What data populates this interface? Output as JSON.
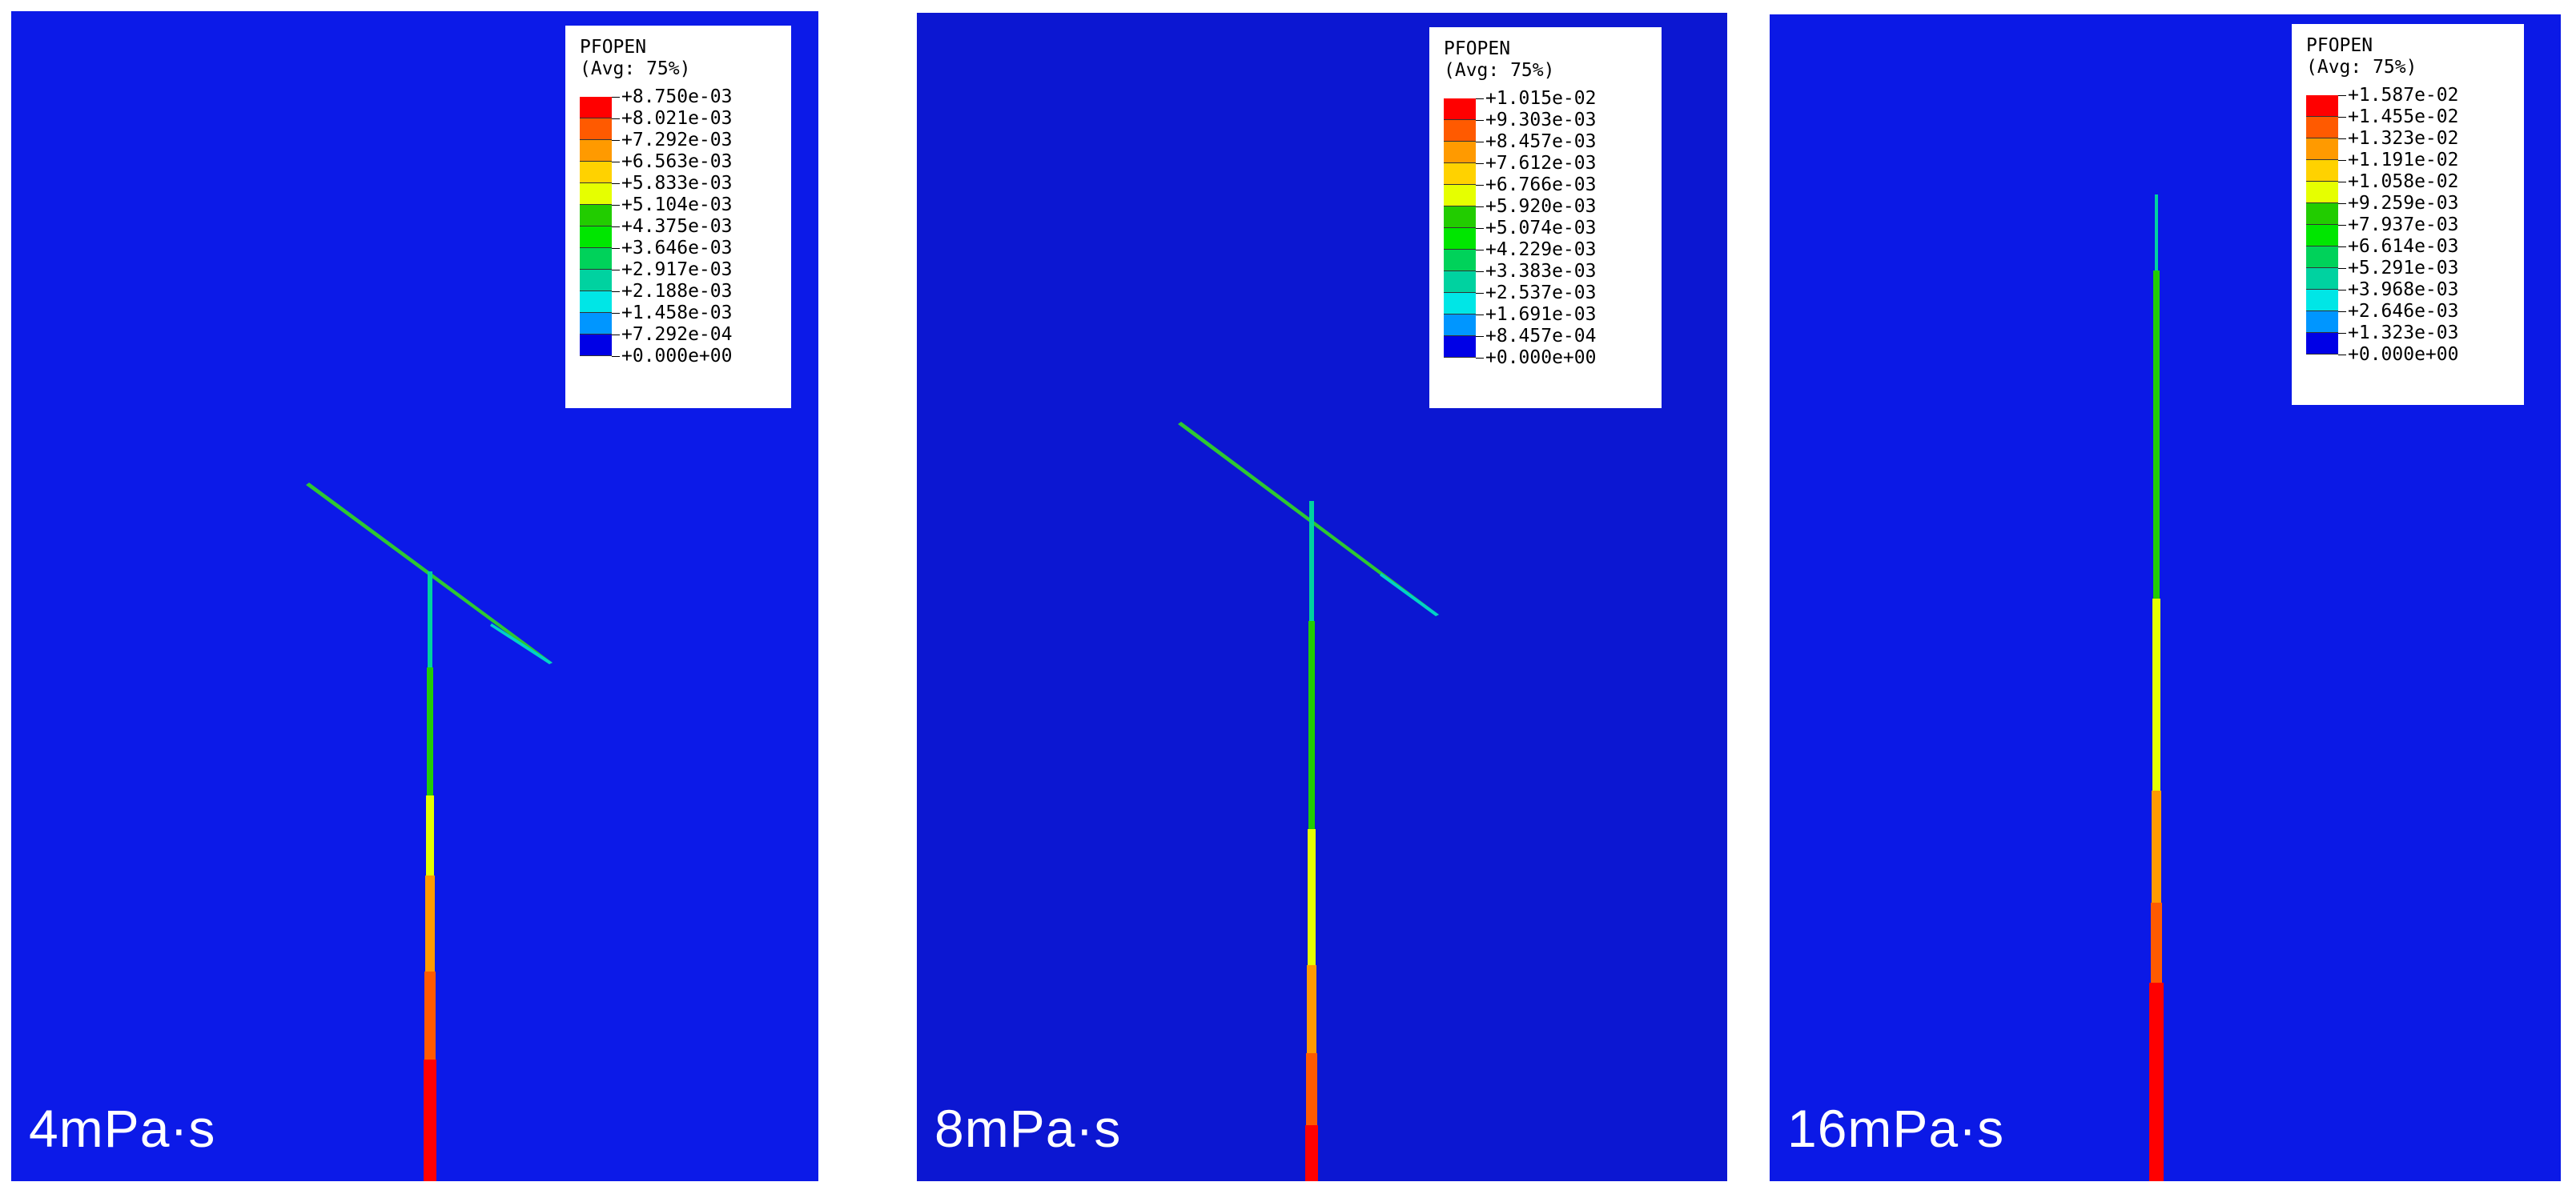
{
  "colors": {
    "background_blue_1": "#0c1ae8",
    "background_blue_2": "#0c17d2",
    "background_blue_3": "#0b19e6"
  },
  "panels": [
    {
      "caption": "4mPa·s",
      "legend": {
        "title": "PFOPEN",
        "subtitle": "(Avg: 75%)",
        "ticks": [
          "+8.750e-03",
          "+8.021e-03",
          "+7.292e-03",
          "+6.563e-03",
          "+5.833e-03",
          "+5.104e-03",
          "+4.375e-03",
          "+3.646e-03",
          "+2.917e-03",
          "+2.188e-03",
          "+1.458e-03",
          "+7.292e-04",
          "+0.000e+00"
        ]
      }
    },
    {
      "caption": "8mPa·s",
      "legend": {
        "title": "PFOPEN",
        "subtitle": "(Avg: 75%)",
        "ticks": [
          "+1.015e-02",
          "+9.303e-03",
          "+8.457e-03",
          "+7.612e-03",
          "+6.766e-03",
          "+5.920e-03",
          "+5.074e-03",
          "+4.229e-03",
          "+3.383e-03",
          "+2.537e-03",
          "+1.691e-03",
          "+8.457e-04",
          "+0.000e+00"
        ]
      }
    },
    {
      "caption": "16mPa·s",
      "legend": {
        "title": "PFOPEN",
        "subtitle": "(Avg: 75%)",
        "ticks": [
          "+1.587e-02",
          "+1.455e-02",
          "+1.323e-02",
          "+1.191e-02",
          "+1.058e-02",
          "+9.259e-03",
          "+7.937e-03",
          "+6.614e-03",
          "+5.291e-03",
          "+3.968e-03",
          "+2.646e-03",
          "+1.323e-03",
          "+0.000e+00"
        ]
      }
    }
  ],
  "legend_colors": [
    "#ff0000",
    "#ff5a00",
    "#ff9a00",
    "#ffd200",
    "#e6ff00",
    "#22cc00",
    "#00e600",
    "#00d25a",
    "#00d2a0",
    "#00e6e6",
    "#0096ff",
    "#0050ff",
    "#0000e6"
  ]
}
